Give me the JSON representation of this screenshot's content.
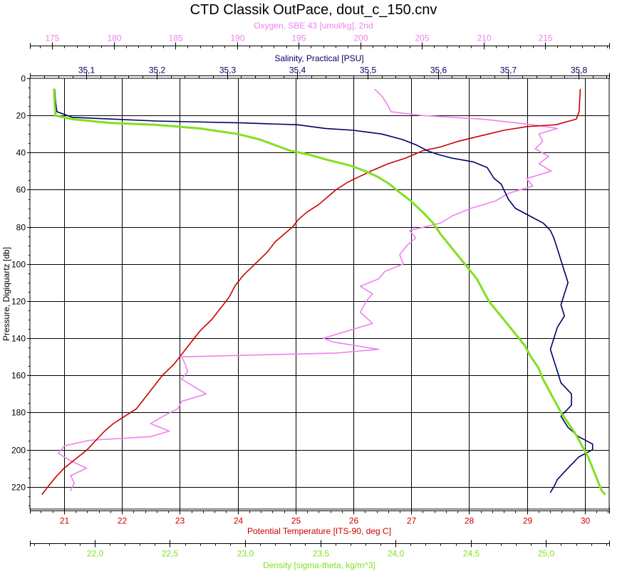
{
  "chart_data": {
    "type": "line",
    "title": "CTD Classik OutPace, dout_c_150.cnv",
    "colors": {
      "temperature": "#cc0000",
      "salinity": "#000066",
      "oxygen": "#ee82ee",
      "density": "#80e020",
      "grid": "#000000"
    },
    "y_axis": {
      "label": "Pressure, Digiquartz [db]",
      "range": [
        0,
        232
      ],
      "inverted": true,
      "ticks": [
        0,
        20,
        40,
        60,
        80,
        100,
        120,
        140,
        160,
        180,
        200,
        220
      ]
    },
    "axes": {
      "oxygen": {
        "label": "Oxygen, SBE 43 [umol/kg], 2nd",
        "position": "top-outer",
        "range": [
          173.2,
          220.2
        ],
        "ticks": [
          175,
          180,
          185,
          190,
          195,
          200,
          205,
          210,
          215
        ],
        "tick_labels": [
          "175",
          "180",
          "185",
          "190",
          "195",
          "200",
          "205",
          "210",
          "215"
        ]
      },
      "salinity": {
        "label": "Salinity, Practical [PSU]",
        "position": "top-inner",
        "range": [
          35.0197,
          35.8436
        ],
        "ticks": [
          35.1,
          35.2,
          35.3,
          35.4,
          35.5,
          35.6,
          35.7,
          35.8
        ],
        "tick_labels": [
          "35,1",
          "35,2",
          "35,3",
          "35,4",
          "35,5",
          "35,6",
          "35,7",
          "35,8"
        ]
      },
      "temperature": {
        "label": "Potential Temperature [ITS-90, deg C]",
        "position": "bottom-inner",
        "range": [
          20.41,
          30.42
        ],
        "ticks": [
          21,
          22,
          23,
          24,
          25,
          26,
          27,
          28,
          29,
          30
        ],
        "tick_labels": [
          "21",
          "22",
          "23",
          "24",
          "25",
          "26",
          "27",
          "28",
          "29",
          "30"
        ]
      },
      "density": {
        "label": "Density [sigma-theta, kg/m^3]",
        "position": "bottom-outer",
        "range": [
          21.57,
          25.42
        ],
        "ticks": [
          22.0,
          22.5,
          23.0,
          23.5,
          24.0,
          24.5,
          25.0
        ],
        "tick_labels": [
          "22,0",
          "22,5",
          "23,0",
          "23,5",
          "24,0",
          "24,5",
          "25,0"
        ]
      }
    },
    "grid": true,
    "series": [
      {
        "key": "temperature",
        "axis": "temperature",
        "points": [
          [
            29.92,
            6
          ],
          [
            29.91,
            12
          ],
          [
            29.9,
            18
          ],
          [
            29.85,
            22
          ],
          [
            29.5,
            25
          ],
          [
            29.0,
            26
          ],
          [
            28.6,
            28
          ],
          [
            28.2,
            31
          ],
          [
            27.8,
            34
          ],
          [
            27.5,
            37
          ],
          [
            27.2,
            39
          ],
          [
            27.05,
            41
          ],
          [
            26.9,
            43
          ],
          [
            26.6,
            46
          ],
          [
            26.3,
            50
          ],
          [
            26.1,
            53
          ],
          [
            25.9,
            56
          ],
          [
            25.7,
            60
          ],
          [
            25.55,
            64
          ],
          [
            25.4,
            68
          ],
          [
            25.2,
            72
          ],
          [
            25.05,
            76
          ],
          [
            24.95,
            80
          ],
          [
            24.8,
            84
          ],
          [
            24.65,
            88
          ],
          [
            24.5,
            94
          ],
          [
            24.3,
            100
          ],
          [
            24.1,
            106
          ],
          [
            23.95,
            112
          ],
          [
            23.85,
            118
          ],
          [
            23.7,
            124
          ],
          [
            23.55,
            130
          ],
          [
            23.35,
            136
          ],
          [
            23.2,
            142
          ],
          [
            23.05,
            148
          ],
          [
            22.9,
            154
          ],
          [
            22.7,
            160
          ],
          [
            22.55,
            166
          ],
          [
            22.4,
            172
          ],
          [
            22.25,
            178
          ],
          [
            22.05,
            182
          ],
          [
            21.85,
            186
          ],
          [
            21.7,
            190
          ],
          [
            21.55,
            195
          ],
          [
            21.4,
            200
          ],
          [
            21.2,
            205
          ],
          [
            21.0,
            210
          ],
          [
            20.85,
            215
          ],
          [
            20.72,
            220
          ],
          [
            20.62,
            224
          ]
        ]
      },
      {
        "key": "salinity",
        "axis": "salinity",
        "points": [
          [
            35.055,
            6
          ],
          [
            35.056,
            12
          ],
          [
            35.058,
            18
          ],
          [
            35.08,
            21
          ],
          [
            35.2,
            23
          ],
          [
            35.32,
            24
          ],
          [
            35.4,
            25
          ],
          [
            35.44,
            27
          ],
          [
            35.48,
            28
          ],
          [
            35.52,
            30
          ],
          [
            35.55,
            33
          ],
          [
            35.57,
            36
          ],
          [
            35.585,
            39
          ],
          [
            35.6,
            41
          ],
          [
            35.62,
            43
          ],
          [
            35.65,
            45
          ],
          [
            35.67,
            48
          ],
          [
            35.675,
            51
          ],
          [
            35.68,
            54
          ],
          [
            35.69,
            57
          ],
          [
            35.695,
            61
          ],
          [
            35.7,
            65
          ],
          [
            35.71,
            70
          ],
          [
            35.73,
            74
          ],
          [
            35.75,
            78
          ],
          [
            35.76,
            82
          ],
          [
            35.765,
            86
          ],
          [
            35.77,
            92
          ],
          [
            35.775,
            98
          ],
          [
            35.78,
            104
          ],
          [
            35.785,
            110
          ],
          [
            35.78,
            116
          ],
          [
            35.775,
            122
          ],
          [
            35.78,
            128
          ],
          [
            35.77,
            134
          ],
          [
            35.765,
            140
          ],
          [
            35.76,
            146
          ],
          [
            35.765,
            152
          ],
          [
            35.77,
            158
          ],
          [
            35.775,
            164
          ],
          [
            35.79,
            170
          ],
          [
            35.79,
            176
          ],
          [
            35.775,
            182
          ],
          [
            35.785,
            188
          ],
          [
            35.8,
            193
          ],
          [
            35.82,
            197
          ],
          [
            35.82,
            200
          ],
          [
            35.8,
            204
          ],
          [
            35.79,
            208
          ],
          [
            35.78,
            212
          ],
          [
            35.77,
            216
          ],
          [
            35.765,
            220
          ],
          [
            35.76,
            223
          ]
        ]
      },
      {
        "key": "oxygen",
        "axis": "oxygen",
        "points": [
          [
            201.2,
            6
          ],
          [
            201.8,
            10
          ],
          [
            202.2,
            14
          ],
          [
            202.5,
            18
          ],
          [
            205.0,
            20
          ],
          [
            210.0,
            22
          ],
          [
            214.0,
            25
          ],
          [
            216.0,
            27
          ],
          [
            214.5,
            30
          ],
          [
            214.8,
            34
          ],
          [
            214.2,
            38
          ],
          [
            215.3,
            42
          ],
          [
            214.5,
            46
          ],
          [
            215.5,
            50
          ],
          [
            213.5,
            54
          ],
          [
            214.0,
            58
          ],
          [
            212.0,
            62
          ],
          [
            211.0,
            66
          ],
          [
            209.0,
            70
          ],
          [
            207.5,
            74
          ],
          [
            206.5,
            78
          ],
          [
            204.0,
            82
          ],
          [
            204.5,
            86
          ],
          [
            203.8,
            90
          ],
          [
            203.2,
            95
          ],
          [
            203.5,
            100
          ],
          [
            202.0,
            104
          ],
          [
            201.5,
            108
          ],
          [
            200.0,
            112
          ],
          [
            201.0,
            116
          ],
          [
            200.5,
            120
          ],
          [
            200.0,
            126
          ],
          [
            201.0,
            132
          ],
          [
            199.0,
            136
          ],
          [
            197.0,
            140
          ],
          [
            197.8,
            142
          ],
          [
            201.5,
            146
          ],
          [
            198.0,
            148
          ],
          [
            185.5,
            150
          ],
          [
            185.8,
            154
          ],
          [
            186.0,
            158
          ],
          [
            185.5,
            162
          ],
          [
            186.5,
            166
          ],
          [
            187.5,
            170
          ],
          [
            185.5,
            174
          ],
          [
            185.2,
            178
          ],
          [
            184.0,
            182
          ],
          [
            183.0,
            186
          ],
          [
            184.5,
            190
          ],
          [
            183.0,
            193
          ],
          [
            178.0,
            195
          ],
          [
            176.0,
            198
          ],
          [
            175.5,
            202
          ],
          [
            176.5,
            206
          ],
          [
            177.8,
            210
          ],
          [
            176.5,
            214
          ],
          [
            176.8,
            218
          ],
          [
            176.5,
            222
          ]
        ]
      },
      {
        "key": "density",
        "axis": "density",
        "points": [
          [
            21.73,
            6
          ],
          [
            21.735,
            14
          ],
          [
            21.74,
            20
          ],
          [
            21.85,
            22
          ],
          [
            22.1,
            24
          ],
          [
            22.4,
            25
          ],
          [
            22.7,
            27
          ],
          [
            22.95,
            30
          ],
          [
            23.1,
            33
          ],
          [
            23.2,
            36
          ],
          [
            23.3,
            39
          ],
          [
            23.42,
            41
          ],
          [
            23.55,
            44
          ],
          [
            23.7,
            47
          ],
          [
            23.8,
            50
          ],
          [
            23.88,
            53
          ],
          [
            23.96,
            57
          ],
          [
            24.02,
            61
          ],
          [
            24.1,
            66
          ],
          [
            24.18,
            72
          ],
          [
            24.25,
            78
          ],
          [
            24.3,
            84
          ],
          [
            24.36,
            90
          ],
          [
            24.42,
            96
          ],
          [
            24.48,
            102
          ],
          [
            24.54,
            108
          ],
          [
            24.58,
            114
          ],
          [
            24.62,
            120
          ],
          [
            24.68,
            126
          ],
          [
            24.74,
            132
          ],
          [
            24.8,
            138
          ],
          [
            24.86,
            144
          ],
          [
            24.9,
            150
          ],
          [
            24.95,
            156
          ],
          [
            24.98,
            162
          ],
          [
            25.02,
            168
          ],
          [
            25.06,
            174
          ],
          [
            25.1,
            180
          ],
          [
            25.15,
            186
          ],
          [
            25.2,
            192
          ],
          [
            25.24,
            198
          ],
          [
            25.28,
            204
          ],
          [
            25.31,
            210
          ],
          [
            25.34,
            216
          ],
          [
            25.37,
            222
          ],
          [
            25.39,
            224
          ]
        ]
      }
    ]
  }
}
